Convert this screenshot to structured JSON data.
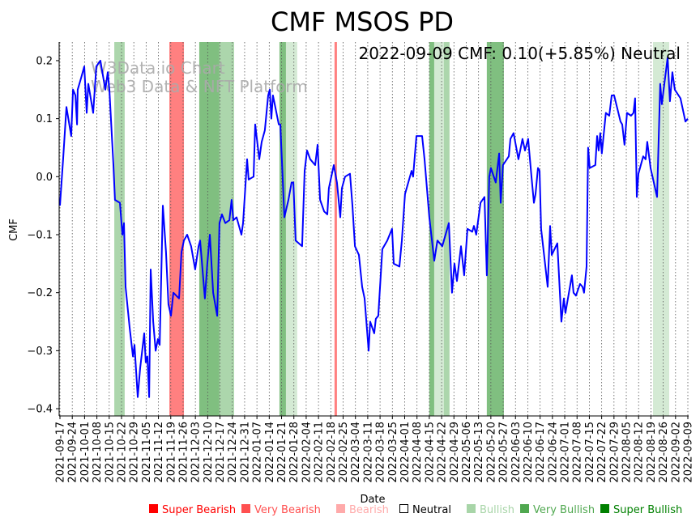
{
  "chart_data": {
    "type": "line",
    "title": "CMF MSOS PD",
    "annotation": "2022-09-09 CMF: 0.10(+5.85%) Neutral",
    "watermark": [
      "W3Data.io Chart",
      "Web3 Data & NFT Platform"
    ],
    "xlabel": "Date",
    "ylabel": "CMF",
    "ylim": [
      -0.4125,
      0.232
    ],
    "xlim_days": [
      0,
      357
    ],
    "start_date": "2021-09-17",
    "yticks": [
      0.2,
      0.1,
      0.0,
      -0.1,
      -0.2,
      -0.3,
      -0.4
    ],
    "ytick_labels": [
      "0.2",
      "0.1",
      "0.0",
      "−0.1",
      "−0.2",
      "−0.3",
      "−0.4"
    ],
    "xtick_labels": [
      "2021-09-17",
      "2021-09-24",
      "2021-10-01",
      "2021-10-08",
      "2021-10-15",
      "2021-10-22",
      "2021-10-29",
      "2021-11-05",
      "2021-11-12",
      "2021-11-19",
      "2021-11-26",
      "2021-12-03",
      "2021-12-10",
      "2021-12-17",
      "2021-12-24",
      "2021-12-31",
      "2022-01-07",
      "2022-01-14",
      "2022-01-21",
      "2022-01-28",
      "2022-02-04",
      "2022-02-11",
      "2022-02-18",
      "2022-02-25",
      "2022-03-04",
      "2022-03-11",
      "2022-03-18",
      "2022-03-25",
      "2022-04-01",
      "2022-04-08",
      "2022-04-15",
      "2022-04-22",
      "2022-04-29",
      "2022-05-06",
      "2022-05-13",
      "2022-05-20",
      "2022-05-27",
      "2022-06-03",
      "2022-06-10",
      "2022-06-17",
      "2022-06-24",
      "2022-07-01",
      "2022-07-08",
      "2022-07-15",
      "2022-07-22",
      "2022-07-29",
      "2022-08-05",
      "2022-08-12",
      "2022-08-19",
      "2022-08-26",
      "2022-09-02",
      "2022-09-09"
    ],
    "grid": "x-dotted",
    "series": [
      {
        "name": "CMF",
        "color": "#0000ff",
        "points_day_value": [
          [
            0,
            -0.05
          ],
          [
            1.8,
            0.03
          ],
          [
            3.7,
            0.12
          ],
          [
            6.4,
            0.07
          ],
          [
            7.4,
            0.15
          ],
          [
            8.8,
            0.14
          ],
          [
            9.7,
            0.09
          ],
          [
            10.1,
            0.15
          ],
          [
            12.0,
            0.17
          ],
          [
            13.8,
            0.19
          ],
          [
            15.2,
            0.11
          ],
          [
            16.1,
            0.16
          ],
          [
            18.9,
            0.11
          ],
          [
            20.7,
            0.19
          ],
          [
            23.0,
            0.2
          ],
          [
            25.8,
            0.15
          ],
          [
            27.2,
            0.18
          ],
          [
            28.1,
            0.15
          ],
          [
            30.4,
            0.02
          ],
          [
            31.3,
            -0.04
          ],
          [
            34.1,
            -0.045
          ],
          [
            35.5,
            -0.1
          ],
          [
            36.4,
            -0.08
          ],
          [
            37.3,
            -0.19
          ],
          [
            39.6,
            -0.26
          ],
          [
            41.5,
            -0.31
          ],
          [
            42.4,
            -0.29
          ],
          [
            44.2,
            -0.38
          ],
          [
            45.6,
            -0.33
          ],
          [
            47.9,
            -0.27
          ],
          [
            48.8,
            -0.32
          ],
          [
            49.7,
            -0.31
          ],
          [
            50.7,
            -0.38
          ],
          [
            51.6,
            -0.16
          ],
          [
            53.0,
            -0.25
          ],
          [
            54.4,
            -0.3
          ],
          [
            55.7,
            -0.28
          ],
          [
            56.7,
            -0.29
          ],
          [
            58.5,
            -0.05
          ],
          [
            60.3,
            -0.13
          ],
          [
            61.7,
            -0.22
          ],
          [
            63.1,
            -0.24
          ],
          [
            64.5,
            -0.2
          ],
          [
            67.7,
            -0.21
          ],
          [
            69.1,
            -0.13
          ],
          [
            70.5,
            -0.11
          ],
          [
            72.3,
            -0.1
          ],
          [
            74.6,
            -0.12
          ],
          [
            76.9,
            -0.16
          ],
          [
            78.8,
            -0.12
          ],
          [
            79.7,
            -0.11
          ],
          [
            82.4,
            -0.21
          ],
          [
            83.8,
            -0.15
          ],
          [
            85.2,
            -0.1
          ],
          [
            87.1,
            -0.2
          ],
          [
            89.4,
            -0.24
          ],
          [
            90.7,
            -0.08
          ],
          [
            92.1,
            -0.065
          ],
          [
            94.0,
            -0.08
          ],
          [
            96.3,
            -0.075
          ],
          [
            97.6,
            -0.04
          ],
          [
            98.6,
            -0.075
          ],
          [
            100.4,
            -0.07
          ],
          [
            103.2,
            -0.1
          ],
          [
            104.1,
            -0.08
          ],
          [
            106.4,
            0.03
          ],
          [
            107.3,
            -0.005
          ],
          [
            110.1,
            0.0
          ],
          [
            111.0,
            0.09
          ],
          [
            113.3,
            0.03
          ],
          [
            114.7,
            0.06
          ],
          [
            116.5,
            0.08
          ],
          [
            118.4,
            0.14
          ],
          [
            119.3,
            0.15
          ],
          [
            120.2,
            0.1
          ],
          [
            121.1,
            0.14
          ],
          [
            124.4,
            0.09
          ],
          [
            125.3,
            0.09
          ],
          [
            127.6,
            -0.07
          ],
          [
            129.9,
            -0.04
          ],
          [
            131.7,
            -0.01
          ],
          [
            132.7,
            -0.01
          ],
          [
            134.0,
            -0.11
          ],
          [
            137.7,
            -0.12
          ],
          [
            139.1,
            0.01
          ],
          [
            140.5,
            0.045
          ],
          [
            142.3,
            0.03
          ],
          [
            145.1,
            0.02
          ],
          [
            146.5,
            0.055
          ],
          [
            147.9,
            -0.04
          ],
          [
            150.2,
            -0.06
          ],
          [
            152.0,
            -0.065
          ],
          [
            152.9,
            -0.02
          ],
          [
            155.7,
            0.02
          ],
          [
            157.5,
            -0.01
          ],
          [
            159.4,
            -0.07
          ],
          [
            160.3,
            -0.02
          ],
          [
            162.1,
            0.0
          ],
          [
            164.9,
            0.005
          ],
          [
            166.3,
            -0.05
          ],
          [
            167.7,
            -0.12
          ],
          [
            170.0,
            -0.135
          ],
          [
            171.8,
            -0.19
          ],
          [
            173.2,
            -0.21
          ],
          [
            175.5,
            -0.3
          ],
          [
            176.4,
            -0.25
          ],
          [
            178.7,
            -0.27
          ],
          [
            179.6,
            -0.245
          ],
          [
            181.0,
            -0.24
          ],
          [
            183.3,
            -0.125
          ],
          [
            186.1,
            -0.11
          ],
          [
            188.8,
            -0.09
          ],
          [
            189.8,
            -0.15
          ],
          [
            193.0,
            -0.155
          ],
          [
            194.4,
            -0.11
          ],
          [
            196.2,
            -0.03
          ],
          [
            199.9,
            0.01
          ],
          [
            200.8,
            0.0
          ],
          [
            202.7,
            0.07
          ],
          [
            205.9,
            0.07
          ],
          [
            207.3,
            0.03
          ],
          [
            210.0,
            -0.07
          ],
          [
            212.8,
            -0.145
          ],
          [
            214.6,
            -0.11
          ],
          [
            216.0,
            -0.115
          ],
          [
            217.4,
            -0.12
          ],
          [
            218.3,
            -0.11
          ],
          [
            221.1,
            -0.08
          ],
          [
            222.9,
            -0.2
          ],
          [
            224.3,
            -0.15
          ],
          [
            225.7,
            -0.18
          ],
          [
            228.0,
            -0.12
          ],
          [
            229.8,
            -0.17
          ],
          [
            231.7,
            -0.09
          ],
          [
            234.4,
            -0.095
          ],
          [
            235.4,
            -0.085
          ],
          [
            236.7,
            -0.1
          ],
          [
            239.1,
            -0.045
          ],
          [
            241.4,
            -0.035
          ],
          [
            242.7,
            -0.17
          ],
          [
            244.1,
            0.0
          ],
          [
            245.0,
            0.015
          ],
          [
            247.8,
            -0.01
          ],
          [
            249.7,
            0.04
          ],
          [
            250.6,
            -0.045
          ],
          [
            251.9,
            0.02
          ],
          [
            255.2,
            0.035
          ],
          [
            256.1,
            0.065
          ],
          [
            257.9,
            0.075
          ],
          [
            260.7,
            0.03
          ],
          [
            263.0,
            0.065
          ],
          [
            264.4,
            0.045
          ],
          [
            266.2,
            0.065
          ],
          [
            268.1,
            0.0
          ],
          [
            269.5,
            -0.045
          ],
          [
            270.4,
            -0.03
          ],
          [
            271.8,
            0.015
          ],
          [
            272.7,
            0.01
          ],
          [
            273.6,
            -0.09
          ],
          [
            277.3,
            -0.19
          ],
          [
            278.7,
            -0.085
          ],
          [
            279.6,
            -0.135
          ],
          [
            282.8,
            -0.115
          ],
          [
            285.1,
            -0.25
          ],
          [
            286.5,
            -0.21
          ],
          [
            287.4,
            -0.235
          ],
          [
            291.1,
            -0.17
          ],
          [
            292.0,
            -0.2
          ],
          [
            293.4,
            -0.205
          ],
          [
            295.7,
            -0.185
          ],
          [
            297.1,
            -0.19
          ],
          [
            298.0,
            -0.2
          ],
          [
            299.4,
            -0.155
          ],
          [
            300.3,
            0.05
          ],
          [
            301.2,
            0.015
          ],
          [
            304.4,
            0.02
          ],
          [
            305.4,
            0.07
          ],
          [
            306.3,
            0.045
          ],
          [
            307.2,
            0.075
          ],
          [
            308.1,
            0.04
          ],
          [
            310.4,
            0.11
          ],
          [
            312.3,
            0.105
          ],
          [
            313.7,
            0.14
          ],
          [
            315.1,
            0.14
          ],
          [
            318.7,
            0.095
          ],
          [
            319.7,
            0.09
          ],
          [
            321.0,
            0.055
          ],
          [
            322.4,
            0.11
          ],
          [
            324.7,
            0.105
          ],
          [
            326.1,
            0.11
          ],
          [
            327.0,
            0.135
          ],
          [
            328.0,
            -0.035
          ],
          [
            328.9,
            0.005
          ],
          [
            331.6,
            0.035
          ],
          [
            333.0,
            0.03
          ],
          [
            333.9,
            0.06
          ],
          [
            335.8,
            0.015
          ],
          [
            339.5,
            -0.035
          ],
          [
            341.3,
            0.16
          ],
          [
            342.2,
            0.125
          ],
          [
            345.5,
            0.205
          ],
          [
            346.8,
            0.13
          ],
          [
            348.2,
            0.18
          ],
          [
            349.6,
            0.15
          ],
          [
            352.8,
            0.135
          ],
          [
            355.6,
            0.095
          ],
          [
            357.0,
            0.1
          ]
        ]
      }
    ],
    "signal_bands": [
      {
        "from_day": 30.9,
        "to_day": 36.8,
        "signal": "Bullish"
      },
      {
        "from_day": 62.2,
        "to_day": 70.5,
        "signal": "Very Bearish"
      },
      {
        "from_day": 79.2,
        "to_day": 90.7,
        "signal": "Very Bullish"
      },
      {
        "from_day": 90.7,
        "to_day": 99.0,
        "signal": "Bullish"
      },
      {
        "from_day": 124.8,
        "to_day": 128.5,
        "signal": "Very Bullish"
      },
      {
        "from_day": 128.5,
        "to_day": 134.9,
        "signal": "Bullish-faint"
      },
      {
        "from_day": 156.1,
        "to_day": 157.5,
        "signal": "Very Bearish"
      },
      {
        "from_day": 210.0,
        "to_day": 212.8,
        "signal": "Very Bullish"
      },
      {
        "from_day": 212.8,
        "to_day": 218.3,
        "signal": "Bullish-faint"
      },
      {
        "from_day": 218.3,
        "to_day": 221.5,
        "signal": "Bullish"
      },
      {
        "from_day": 242.7,
        "to_day": 252.4,
        "signal": "Very Bullish"
      },
      {
        "from_day": 337.2,
        "to_day": 346.4,
        "signal": "Bullish-faint"
      }
    ],
    "band_colors": {
      "Very Bearish": "#ff8080",
      "Very Bullish": "#80bf80",
      "Bullish": "#acd6ac",
      "Bullish-faint": "#d4ead4"
    },
    "legend": [
      {
        "label": "Super Bearish",
        "color": "#ff0000"
      },
      {
        "label": "Very Bearish",
        "color": "#ff5050"
      },
      {
        "label": "Bearish",
        "color": "#ffaaaa"
      },
      {
        "label": "Neutral",
        "color": "#000000",
        "hollow": true
      },
      {
        "label": "Bullish",
        "color": "#a8d5a8"
      },
      {
        "label": "Very Bullish",
        "color": "#50a850"
      },
      {
        "label": "Super Bullish",
        "color": "#008000"
      }
    ]
  }
}
